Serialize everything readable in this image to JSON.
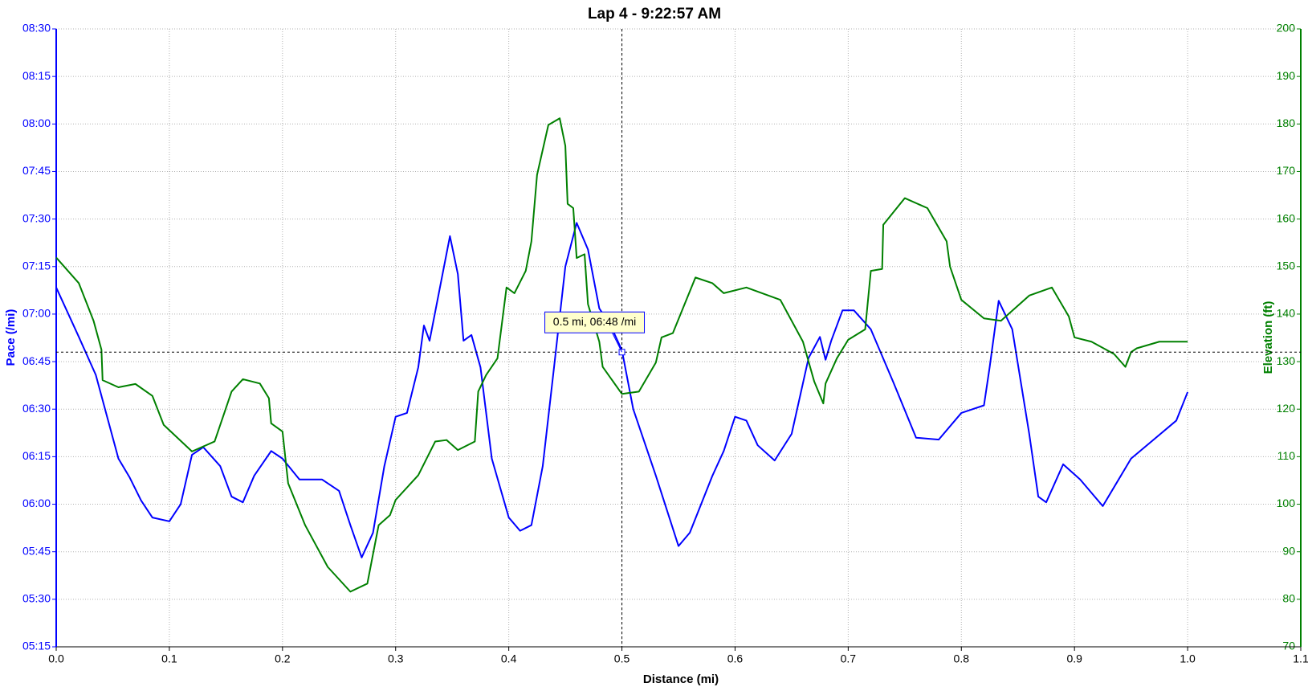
{
  "chart_data": {
    "type": "line",
    "title": "Lap 4 - 9:22:57 AM",
    "xlabel": "Distance (mi)",
    "ylabel": "Pace (/mi)",
    "y2label": "Elevation (ft)",
    "xlim": [
      0,
      1.1
    ],
    "xticks": [
      {
        "value": 0,
        "label": "0.0"
      },
      0.1,
      0.2,
      0.3,
      0.4,
      0.5,
      0.6,
      0.7,
      0.8,
      0.9,
      {
        "value": 1,
        "label": "1.0"
      },
      1.1
    ],
    "ylim": [
      5.25,
      8.5
    ],
    "yticks": [
      {
        "value": 5.25,
        "label": "05:15"
      },
      {
        "value": 5.5,
        "label": "05:30"
      },
      {
        "value": 5.75,
        "label": "05:45"
      },
      {
        "value": 6,
        "label": "06:00"
      },
      {
        "value": 6.25,
        "label": "06:15"
      },
      {
        "value": 6.5,
        "label": "06:30"
      },
      {
        "value": 6.75,
        "label": "06:45"
      },
      {
        "value": 7,
        "label": "07:00"
      },
      {
        "value": 7.25,
        "label": "07:15"
      },
      {
        "value": 7.5,
        "label": "07:30"
      },
      {
        "value": 7.75,
        "label": "07:45"
      },
      {
        "value": 8,
        "label": "08:00"
      },
      {
        "value": 8.25,
        "label": "08:15"
      },
      {
        "value": 8.5,
        "label": "08:30"
      }
    ],
    "y2lim": [
      70,
      200
    ],
    "y2ticks": [
      70,
      80,
      90,
      100,
      110,
      120,
      130,
      140,
      150,
      160,
      170,
      180,
      190,
      200
    ],
    "grid": true,
    "annotation": {
      "text": "0.5 mi, 06:48 /mi",
      "x": 0.5,
      "y": 6.8
    },
    "series": [
      {
        "color": "#0000ff",
        "axis": "y",
        "x": [
          0,
          0.02,
          0.035,
          0.045,
          0.055,
          0.065,
          0.075,
          0.085,
          0.1,
          0.11,
          0.12,
          0.13,
          0.145,
          0.155,
          0.165,
          0.175,
          0.19,
          0.2,
          0.215,
          0.235,
          0.25,
          0.26,
          0.27,
          0.28,
          0.29,
          0.3,
          0.31,
          0.32,
          0.325,
          0.33,
          0.348,
          0.355,
          0.36,
          0.367,
          0.375,
          0.385,
          0.4,
          0.41,
          0.42,
          0.43,
          0.44,
          0.45,
          0.46,
          0.47,
          0.48,
          0.49,
          0.5,
          0.51,
          0.53,
          0.55,
          0.56,
          0.58,
          0.59,
          0.6,
          0.61,
          0.62,
          0.635,
          0.65,
          0.665,
          0.675,
          0.68,
          0.685,
          0.695,
          0.705,
          0.72,
          0.74,
          0.76,
          0.78,
          0.8,
          0.82,
          0.825,
          0.833,
          0.845,
          0.86,
          0.868,
          0.875,
          0.89,
          0.905,
          0.925,
          0.95,
          0.97,
          0.99,
          1.0
        ],
        "values": [
          7.14,
          6.88,
          6.68,
          6.46,
          6.24,
          6.14,
          6.02,
          5.93,
          5.91,
          6.0,
          6.26,
          6.3,
          6.2,
          6.04,
          6.01,
          6.15,
          6.28,
          6.24,
          6.13,
          6.13,
          6.07,
          5.89,
          5.72,
          5.85,
          6.2,
          6.46,
          6.48,
          6.72,
          6.94,
          6.86,
          7.41,
          7.21,
          6.86,
          6.89,
          6.72,
          6.24,
          5.93,
          5.86,
          5.89,
          6.2,
          6.72,
          7.25,
          7.48,
          7.34,
          7.03,
          6.94,
          6.81,
          6.5,
          6.15,
          5.78,
          5.85,
          6.15,
          6.28,
          6.46,
          6.44,
          6.31,
          6.23,
          6.37,
          6.77,
          6.88,
          6.76,
          6.86,
          7.02,
          7.02,
          6.92,
          6.64,
          6.35,
          6.34,
          6.48,
          6.52,
          6.72,
          7.07,
          6.92,
          6.37,
          6.04,
          6.01,
          6.21,
          6.13,
          5.99,
          6.24,
          6.34,
          6.44,
          6.59
        ]
      },
      {
        "color": "#008000",
        "axis": "y2",
        "x": [
          0,
          0.02,
          0.033,
          0.04,
          0.041,
          0.055,
          0.07,
          0.085,
          0.095,
          0.12,
          0.14,
          0.155,
          0.165,
          0.18,
          0.188,
          0.19,
          0.2,
          0.205,
          0.22,
          0.24,
          0.26,
          0.275,
          0.28,
          0.285,
          0.295,
          0.3,
          0.32,
          0.335,
          0.345,
          0.355,
          0.37,
          0.373,
          0.38,
          0.39,
          0.398,
          0.405,
          0.415,
          0.42,
          0.425,
          0.435,
          0.445,
          0.45,
          0.452,
          0.457,
          0.46,
          0.467,
          0.47,
          0.48,
          0.483,
          0.5,
          0.515,
          0.53,
          0.535,
          0.545,
          0.565,
          0.58,
          0.59,
          0.61,
          0.64,
          0.66,
          0.67,
          0.678,
          0.68,
          0.69,
          0.7,
          0.715,
          0.72,
          0.73,
          0.731,
          0.75,
          0.77,
          0.787,
          0.79,
          0.8,
          0.82,
          0.835,
          0.86,
          0.88,
          0.895,
          0.9,
          0.915,
          0.935,
          0.945,
          0.95,
          0.955,
          0.975,
          1.0
        ],
        "values": [
          151.9,
          146.5,
          138.6,
          132.5,
          126.1,
          124.6,
          125.3,
          122.8,
          116.7,
          111.1,
          113.2,
          123.7,
          126.3,
          125.4,
          122.3,
          117,
          115.3,
          104.4,
          95.6,
          86.8,
          81.6,
          83.3,
          89.5,
          95.6,
          97.7,
          100.9,
          106.1,
          113.2,
          113.5,
          111.4,
          113.2,
          123.7,
          127.2,
          130.7,
          145.6,
          144.4,
          149.1,
          155.3,
          169.3,
          179.8,
          181.2,
          175.4,
          163.2,
          162.3,
          151.8,
          152.6,
          142.1,
          134.2,
          128.9,
          123.2,
          123.7,
          129.8,
          135.1,
          136,
          147.7,
          146.5,
          144.4,
          145.6,
          143,
          134.2,
          125.8,
          121.2,
          125.4,
          130.7,
          134.6,
          136.8,
          149.1,
          149.5,
          158.8,
          164.4,
          162.3,
          155.3,
          150,
          143,
          139.1,
          138.6,
          143.9,
          145.6,
          139.5,
          135.1,
          134.2,
          131.6,
          128.9,
          132,
          132.8,
          134.2,
          134.2
        ]
      }
    ]
  }
}
